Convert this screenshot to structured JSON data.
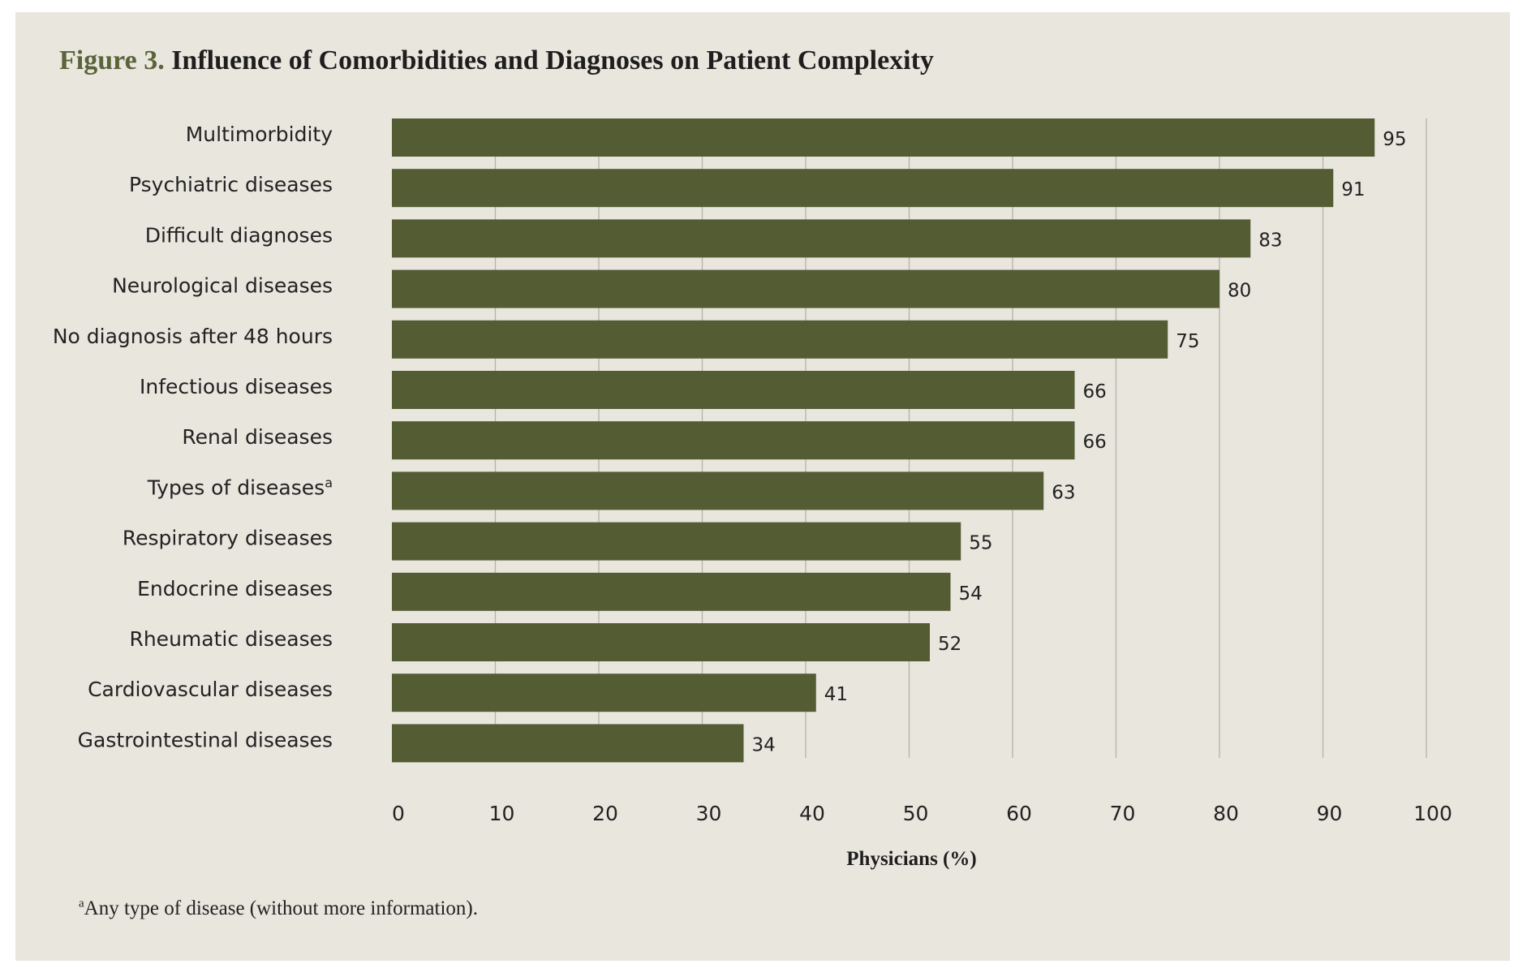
{
  "figure": {
    "label": "Figure 3.",
    "title": "Influence of Comorbidities and Diagnoses on Patient Complexity",
    "footnote_marker": "a",
    "footnote": "Any type of disease (without more information)."
  },
  "colors": {
    "bar": "#545c34",
    "panel": "#e9e6de",
    "gridline": "#b5b2aa",
    "figure_label": "#5a6339"
  },
  "chart_data": {
    "type": "bar",
    "orientation": "horizontal",
    "title": "Influence of Comorbidities and Diagnoses on Patient Complexity",
    "xlabel": "Physicians (%)",
    "ylabel": "",
    "xlim": [
      0,
      100
    ],
    "xticks": [
      0,
      10,
      20,
      30,
      40,
      50,
      60,
      70,
      80,
      90,
      100
    ],
    "grid": true,
    "legend": "none",
    "categories": [
      "Multimorbidity",
      "Psychiatric diseases",
      "Difficult diagnoses",
      "Neurological diseases",
      "No diagnosis after 48 hours",
      "Infectious diseases",
      "Renal diseases",
      "Types of diseases",
      "Respiratory diseases",
      "Endocrine diseases",
      "Rheumatic diseases",
      "Cardiovascular diseases",
      "Gastrointestinal diseases"
    ],
    "category_superscripts": [
      "",
      "",
      "",
      "",
      "",
      "",
      "",
      "a",
      "",
      "",
      "",
      "",
      ""
    ],
    "values": [
      95,
      91,
      83,
      80,
      75,
      66,
      66,
      63,
      55,
      54,
      52,
      41,
      34
    ]
  }
}
